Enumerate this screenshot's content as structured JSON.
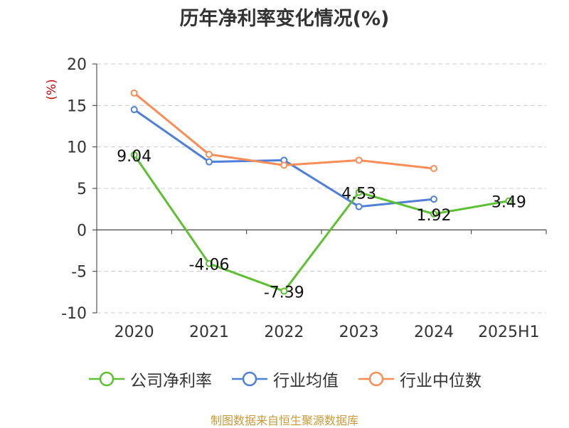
{
  "colors": {
    "company": "#5cc130",
    "avg": "#4f7fd8",
    "median": "#f98d55",
    "ylabel": "#cc0000",
    "source": "#c99a3a",
    "grid": "#cccccc"
  },
  "footer": {
    "source": "制图数据来自恒生聚源数据库"
  },
  "chart_data": {
    "type": "line",
    "title": "历年净利率变化情况(%)",
    "ylabel": "(%)",
    "categories": [
      "2020",
      "2021",
      "2022",
      "2023",
      "2024",
      "2025H1"
    ],
    "ylim": [
      -10,
      20
    ],
    "yticks": [
      "20",
      "15",
      "10",
      "5",
      "0",
      "-5",
      "-10"
    ],
    "grid": true,
    "legend_position": "bottom",
    "series": [
      {
        "name": "公司净利率",
        "color": "#5cc130",
        "values": [
          9.04,
          -4.06,
          -7.39,
          4.53,
          1.92,
          3.49
        ],
        "labels": [
          "9.04",
          "-4.06",
          "-7.39",
          "4.53",
          "1.92",
          "3.49"
        ]
      },
      {
        "name": "行业均值",
        "color": "#4f7fd8",
        "values": [
          14.5,
          8.2,
          8.4,
          2.8,
          3.7,
          null
        ]
      },
      {
        "name": "行业中位数",
        "color": "#f98d55",
        "values": [
          16.5,
          9.1,
          7.8,
          8.4,
          7.4,
          null
        ]
      }
    ]
  }
}
